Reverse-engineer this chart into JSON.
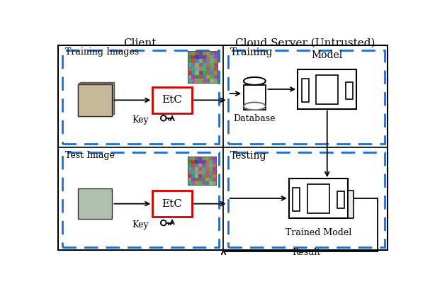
{
  "client_label": "Client",
  "cloud_label": "Cloud Server (Untrusted)",
  "training_label": "Training",
  "testing_label": "Testing",
  "training_images_label": "Training Images",
  "test_image_label": "Test Image",
  "key_label": "Key",
  "database_label": "Database",
  "model_label": "Model",
  "trained_model_label": "Trained Model",
  "result_label": "Result",
  "etc_label": "EtC",
  "bg_color": "#ffffff",
  "dashed_color": "#1e6fcc",
  "black": "#000000",
  "red": "#cc0000"
}
